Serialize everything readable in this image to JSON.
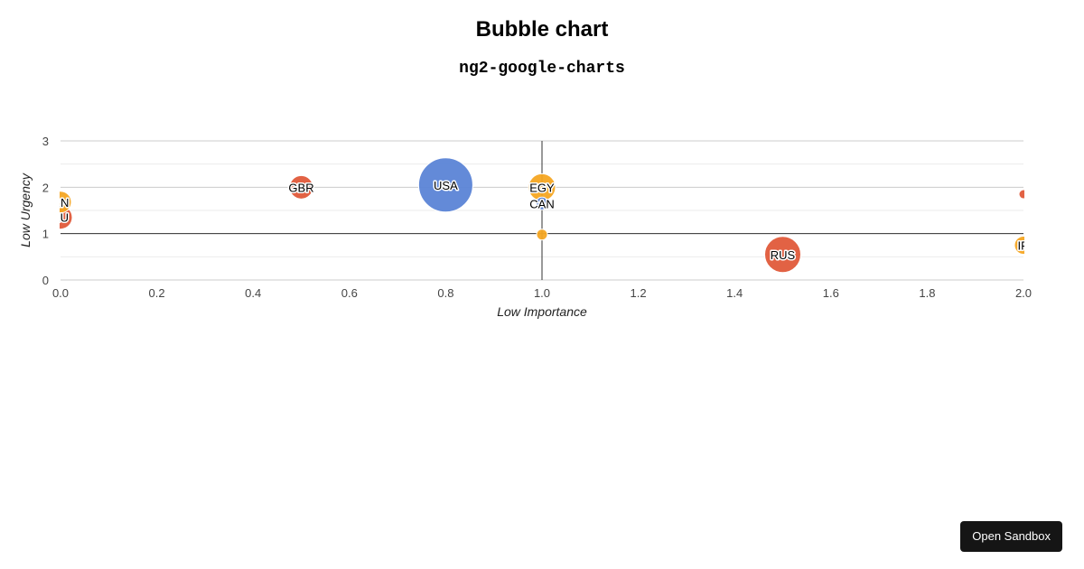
{
  "page": {
    "title": "Bubble chart",
    "subtitle": "ng2-google-charts",
    "sandbox_button": "Open Sandbox"
  },
  "chart_data": {
    "type": "scatter",
    "subtype": "bubble",
    "title": "",
    "xlabel": "Low Importance",
    "ylabel": "Low Urgency",
    "xlim": [
      0,
      2
    ],
    "ylim": [
      0,
      3
    ],
    "x_ticks": [
      "0.0",
      "0.2",
      "0.4",
      "0.6",
      "0.8",
      "1.0",
      "1.2",
      "1.4",
      "1.6",
      "1.8",
      "2.0"
    ],
    "y_ticks": [
      "0",
      "1",
      "2",
      "3"
    ],
    "baselines": {
      "x": 1.0,
      "y": 1.0
    },
    "grid": true,
    "legend": "none",
    "colors": {
      "blue": "#5b84d6",
      "red": "#e05a3a",
      "orange": "#f5a623"
    },
    "points": [
      {
        "label": "RN",
        "x": 0.0,
        "y": 1.68,
        "size": 12,
        "color": "orange"
      },
      {
        "label": "EU",
        "x": 0.0,
        "y": 1.35,
        "size": 13,
        "color": "red"
      },
      {
        "label": "GBR",
        "x": 0.5,
        "y": 2.0,
        "size": 13,
        "color": "red"
      },
      {
        "label": "USA",
        "x": 0.8,
        "y": 2.05,
        "size": 30,
        "color": "blue"
      },
      {
        "label": "EGY",
        "x": 1.0,
        "y": 2.0,
        "size": 15,
        "color": "orange"
      },
      {
        "label": "CAN",
        "x": 1.0,
        "y": 1.65,
        "size": 7,
        "color": "blue"
      },
      {
        "label": "",
        "x": 1.0,
        "y": 0.98,
        "size": 6,
        "color": "orange"
      },
      {
        "label": "RUS",
        "x": 1.5,
        "y": 0.55,
        "size": 20,
        "color": "red"
      },
      {
        "label": "",
        "x": 2.0,
        "y": 1.85,
        "size": 5,
        "color": "red"
      },
      {
        "label": "IR",
        "x": 2.0,
        "y": 0.75,
        "size": 10,
        "color": "orange"
      }
    ]
  }
}
